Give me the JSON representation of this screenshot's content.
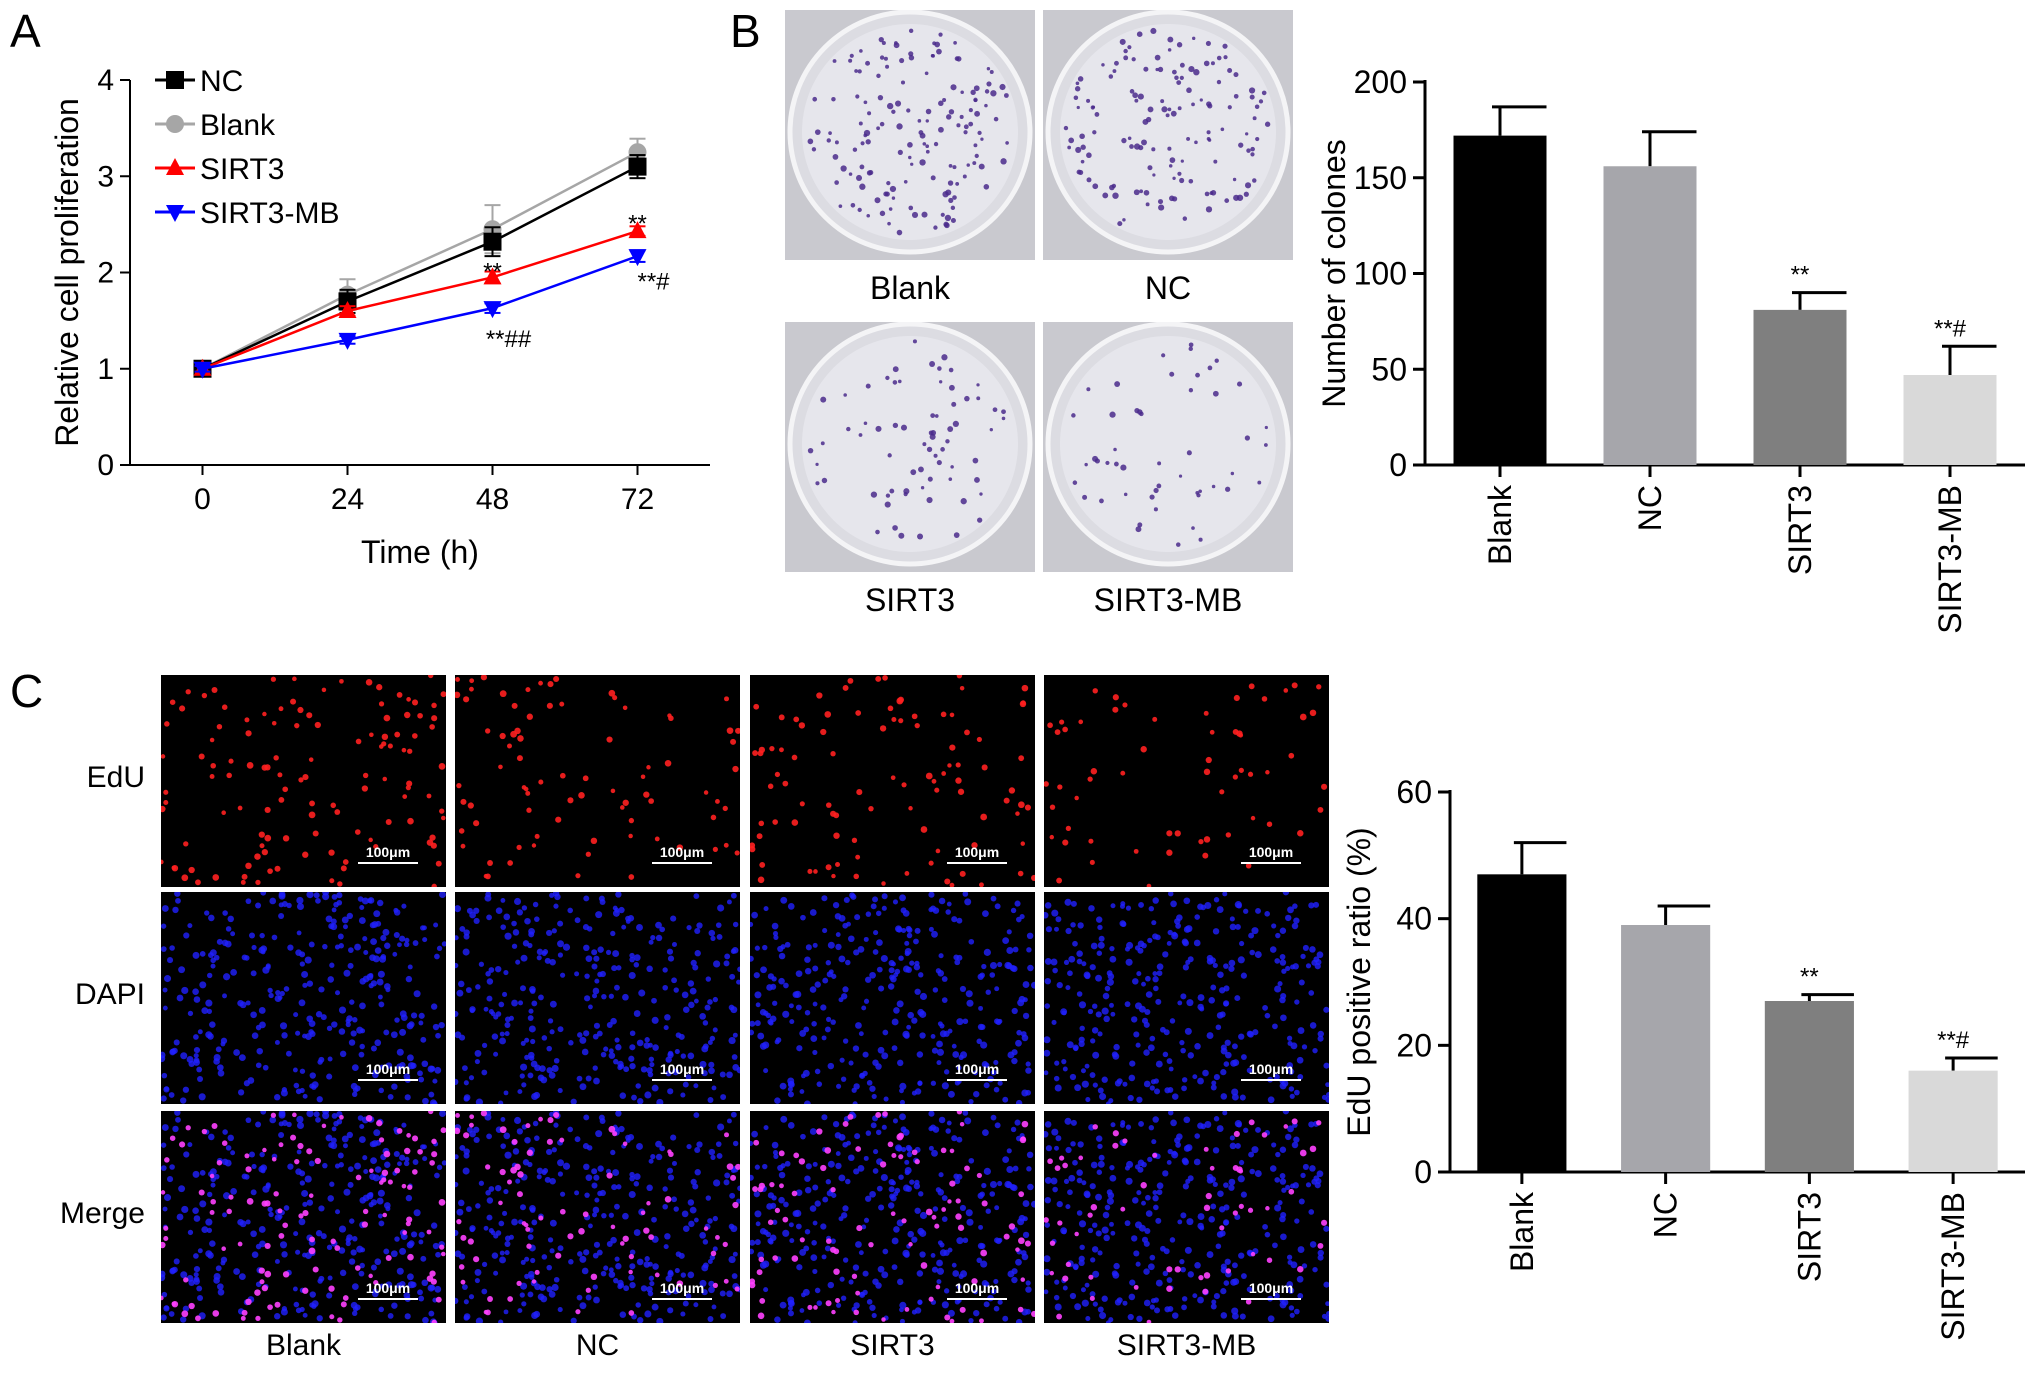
{
  "panels": {
    "a": "A",
    "b": "B",
    "c": "C"
  },
  "chart_data": [
    {
      "type": "line",
      "xlabel": "Time (h)",
      "ylabel": "Relative cell proliferation",
      "x": [
        0,
        24,
        48,
        72
      ],
      "xlim": [
        -12,
        84
      ],
      "ylim": [
        0,
        4
      ],
      "yticks": [
        0,
        1,
        2,
        3,
        4
      ],
      "legend": "top-left",
      "series": [
        {
          "name": "NC",
          "color": "#000000",
          "marker": "square",
          "values": [
            1.0,
            1.7,
            2.32,
            3.1
          ],
          "errors": [
            0.04,
            0.12,
            0.15,
            0.12
          ]
        },
        {
          "name": "Blank",
          "color": "#a6a6a6",
          "marker": "circle",
          "values": [
            1.0,
            1.77,
            2.45,
            3.25
          ],
          "errors": [
            0.04,
            0.16,
            0.25,
            0.14
          ]
        },
        {
          "name": "SIRT3",
          "color": "#ff0000",
          "marker": "triangle-up",
          "values": [
            1.0,
            1.6,
            1.95,
            2.43
          ],
          "errors": [
            0.03,
            0.05,
            0.06,
            0.05
          ]
        },
        {
          "name": "SIRT3-MB",
          "color": "#0000ff",
          "marker": "triangle-down",
          "values": [
            1.0,
            1.3,
            1.63,
            2.17
          ],
          "errors": [
            0.03,
            0.04,
            0.05,
            0.06
          ]
        }
      ],
      "annotations": [
        {
          "x": 48,
          "y": 2.05,
          "text": "**"
        },
        {
          "x": 48,
          "y": 1.35,
          "text": "**##"
        },
        {
          "x": 72,
          "y": 2.55,
          "text": "**"
        },
        {
          "x": 72,
          "y": 1.95,
          "text": "**#"
        }
      ]
    },
    {
      "type": "bar",
      "ylabel": "Number of colones",
      "categories": [
        "Blank",
        "NC",
        "SIRT3",
        "SIRT3-MB"
      ],
      "values": [
        172,
        156,
        81,
        47
      ],
      "errors": [
        15,
        18,
        9,
        15
      ],
      "colors": [
        "#000000",
        "#a6a6ab",
        "#7f7f7f",
        "#d9d9d9"
      ],
      "ylim": [
        0,
        200
      ],
      "yticks": [
        0,
        50,
        100,
        150,
        200
      ],
      "annotations": [
        "",
        "",
        "**",
        "**#"
      ]
    },
    {
      "type": "bar",
      "ylabel": "EdU positive ratio (%)",
      "categories": [
        "Blank",
        "NC",
        "SIRT3",
        "SIRT3-MB"
      ],
      "values": [
        47,
        39,
        27,
        16
      ],
      "errors": [
        5,
        3,
        1,
        2
      ],
      "colors": [
        "#000000",
        "#a6a6ab",
        "#7f7f7f",
        "#d9d9d9"
      ],
      "ylim": [
        0,
        60
      ],
      "yticks": [
        0,
        20,
        40,
        60
      ],
      "annotations": [
        "",
        "",
        "**",
        "**#"
      ]
    }
  ],
  "colony_images": {
    "labels": [
      "Blank",
      "NC",
      "SIRT3",
      "SIRT3-MB"
    ],
    "dish_color": "#dcdce2",
    "colony_color": "#4a2a8c"
  },
  "edu_images": {
    "rows": [
      "EdU",
      "DAPI",
      "Merge"
    ],
    "columns": [
      "Blank",
      "NC",
      "SIRT3",
      "SIRT3-MB"
    ],
    "scale_bar": "100μm",
    "edu_color": "#ff2020",
    "dapi_color": "#2020ff",
    "merge_color": "#ff40ff"
  }
}
